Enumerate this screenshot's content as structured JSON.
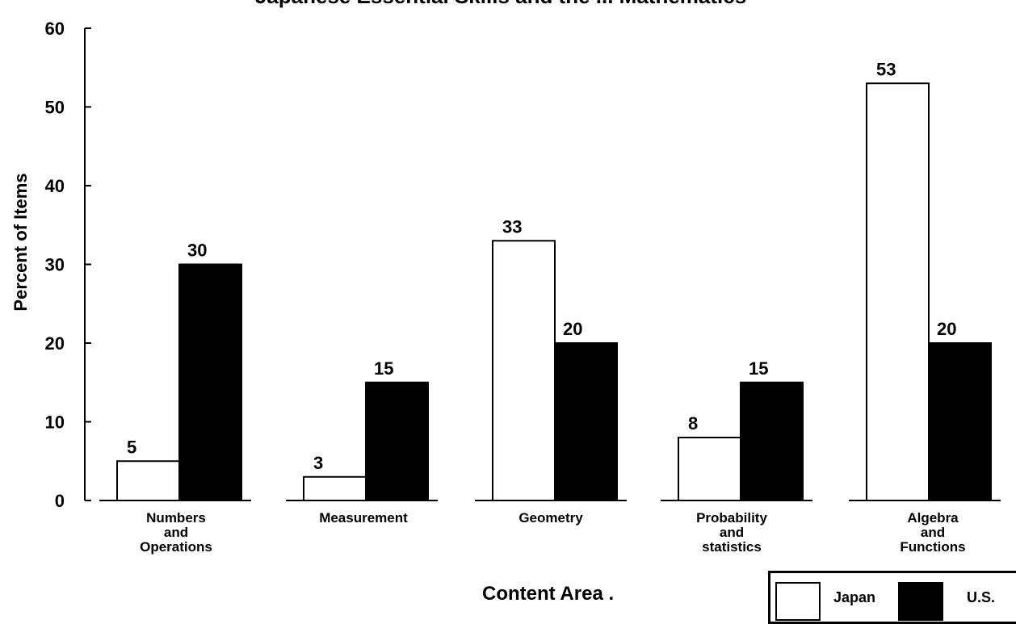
{
  "chart_data": {
    "type": "bar",
    "title": "Japanese Essential Skills and the ... Mathematics",
    "xlabel": "Content Area .",
    "ylabel": "Percent of Items",
    "ylim": [
      0,
      60
    ],
    "yticks": [
      "0",
      "10",
      "20",
      "30",
      "40",
      "50",
      "60"
    ],
    "grid": false,
    "legend_position": "bottom-right",
    "categories": [
      [
        "Numbers",
        "and",
        "Operations"
      ],
      [
        "Measurement"
      ],
      [
        "Geometry"
      ],
      [
        "Probability",
        "and",
        "statistics"
      ],
      [
        "Algebra",
        "and",
        "Functions"
      ]
    ],
    "series": [
      {
        "name": "Japan",
        "values": [
          5,
          3,
          33,
          8,
          53
        ],
        "color": "#ffffff"
      },
      {
        "name": "U.S.",
        "values": [
          30,
          15,
          20,
          15,
          20
        ],
        "color": "#000000"
      }
    ],
    "data_labels": [
      [
        "5",
        "3",
        "33",
        "8",
        "53"
      ],
      [
        "30",
        "15",
        "20",
        "15",
        "20"
      ]
    ]
  }
}
